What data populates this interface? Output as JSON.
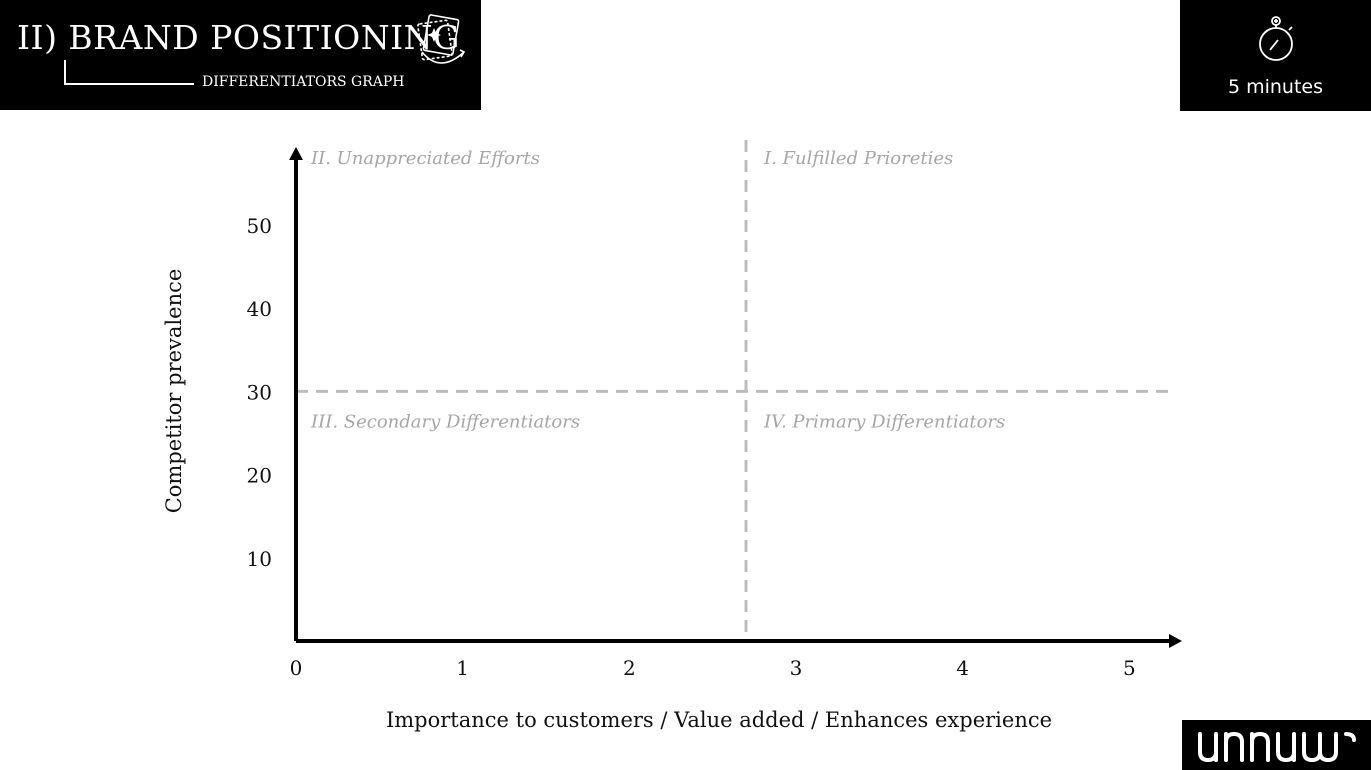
{
  "header": {
    "title": "II) BRAND POSITIONING",
    "subtitle": "DIFFERENTIATORS GRAPH",
    "icon": "sparkle-cards-icon"
  },
  "timer": {
    "label": "5 minutes",
    "icon": "stopwatch-icon"
  },
  "logo": {
    "text": "unnus",
    "icon": "unnus-logo"
  },
  "chart_data": {
    "type": "scatter",
    "title": "",
    "xlabel": "Importance to customers / Value added / Enhances experience",
    "ylabel": "Competitor prevalence",
    "x_ticks": [
      0,
      1,
      2,
      3,
      4,
      5
    ],
    "y_ticks": [
      10,
      20,
      30,
      40,
      50
    ],
    "xlim": [
      0,
      5.25
    ],
    "ylim": [
      0,
      59
    ],
    "divider_x": 2.7,
    "divider_y": 30,
    "grid": false,
    "quadrants": [
      {
        "label": "II. Unappreciated Efforts",
        "position": "top-left"
      },
      {
        "label": "I. Fulfilled Prioreties",
        "position": "top-right"
      },
      {
        "label": "III. Secondary Differentiators",
        "position": "bottom-left"
      },
      {
        "label": "IV. Primary Differentiators",
        "position": "bottom-right"
      }
    ],
    "series": []
  }
}
